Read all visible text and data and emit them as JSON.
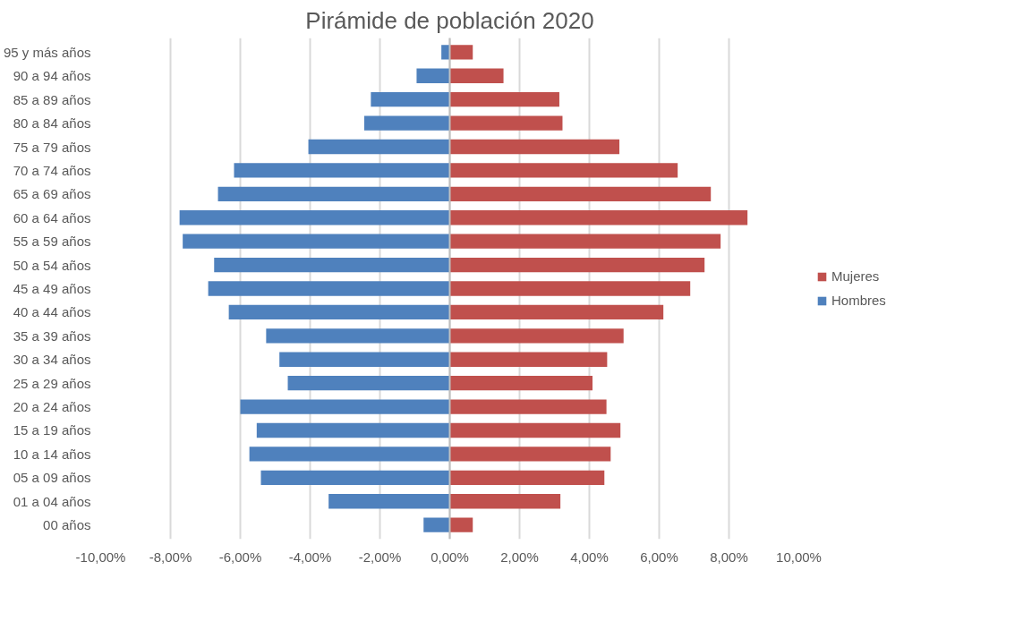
{
  "chart_data": {
    "type": "bar",
    "orientation": "horizontal",
    "title": "Pirámide de población 2020",
    "categories": [
      "95 y más años",
      "90 a 94 años",
      "85 a 89 años",
      "80 a 84 años",
      "75 a 79 años",
      "70 a 74 años",
      "65 a 69 años",
      "60 a 64 años",
      "55 a 59 años",
      "50 a 54 años",
      "45 a 49 años",
      "40 a 44 años",
      "35 a 39 años",
      "30 a 34 años",
      "25 a 29 años",
      "20 a 24 años",
      "15 a 19 años",
      "10 a 14 años",
      "05 a 09 años",
      "01 a 04 años",
      "00 años"
    ],
    "series": [
      {
        "name": "Mujeres",
        "color": "#c0504d",
        "values": [
          0.66,
          1.54,
          3.14,
          3.23,
          4.86,
          6.53,
          7.48,
          8.53,
          7.76,
          7.3,
          6.89,
          6.12,
          4.98,
          4.51,
          4.09,
          4.49,
          4.89,
          4.61,
          4.43,
          3.17,
          0.66
        ]
      },
      {
        "name": "Hombres",
        "color": "#4f81bd",
        "values": [
          -0.24,
          -0.95,
          -2.26,
          -2.45,
          -4.05,
          -6.18,
          -6.64,
          -7.74,
          -7.65,
          -6.75,
          -6.92,
          -6.33,
          -5.26,
          -4.88,
          -4.64,
          -6.0,
          -5.53,
          -5.74,
          -5.41,
          -3.47,
          -0.75
        ]
      }
    ],
    "xlim": [
      -10,
      10
    ],
    "xticks": [
      {
        "value": -10,
        "label": "-10,00%"
      },
      {
        "value": -8,
        "label": "-8,00%"
      },
      {
        "value": -6,
        "label": "-6,00%"
      },
      {
        "value": -4,
        "label": "-4,00%"
      },
      {
        "value": -2,
        "label": "-2,00%"
      },
      {
        "value": 0,
        "label": "0,00%"
      },
      {
        "value": 2,
        "label": "2,00%"
      },
      {
        "value": 4,
        "label": "4,00%"
      },
      {
        "value": 6,
        "label": "6,00%"
      },
      {
        "value": 8,
        "label": "8,00%"
      },
      {
        "value": 10,
        "label": "10,00%"
      }
    ],
    "grid": "x",
    "legend": "right",
    "stacked": true
  }
}
